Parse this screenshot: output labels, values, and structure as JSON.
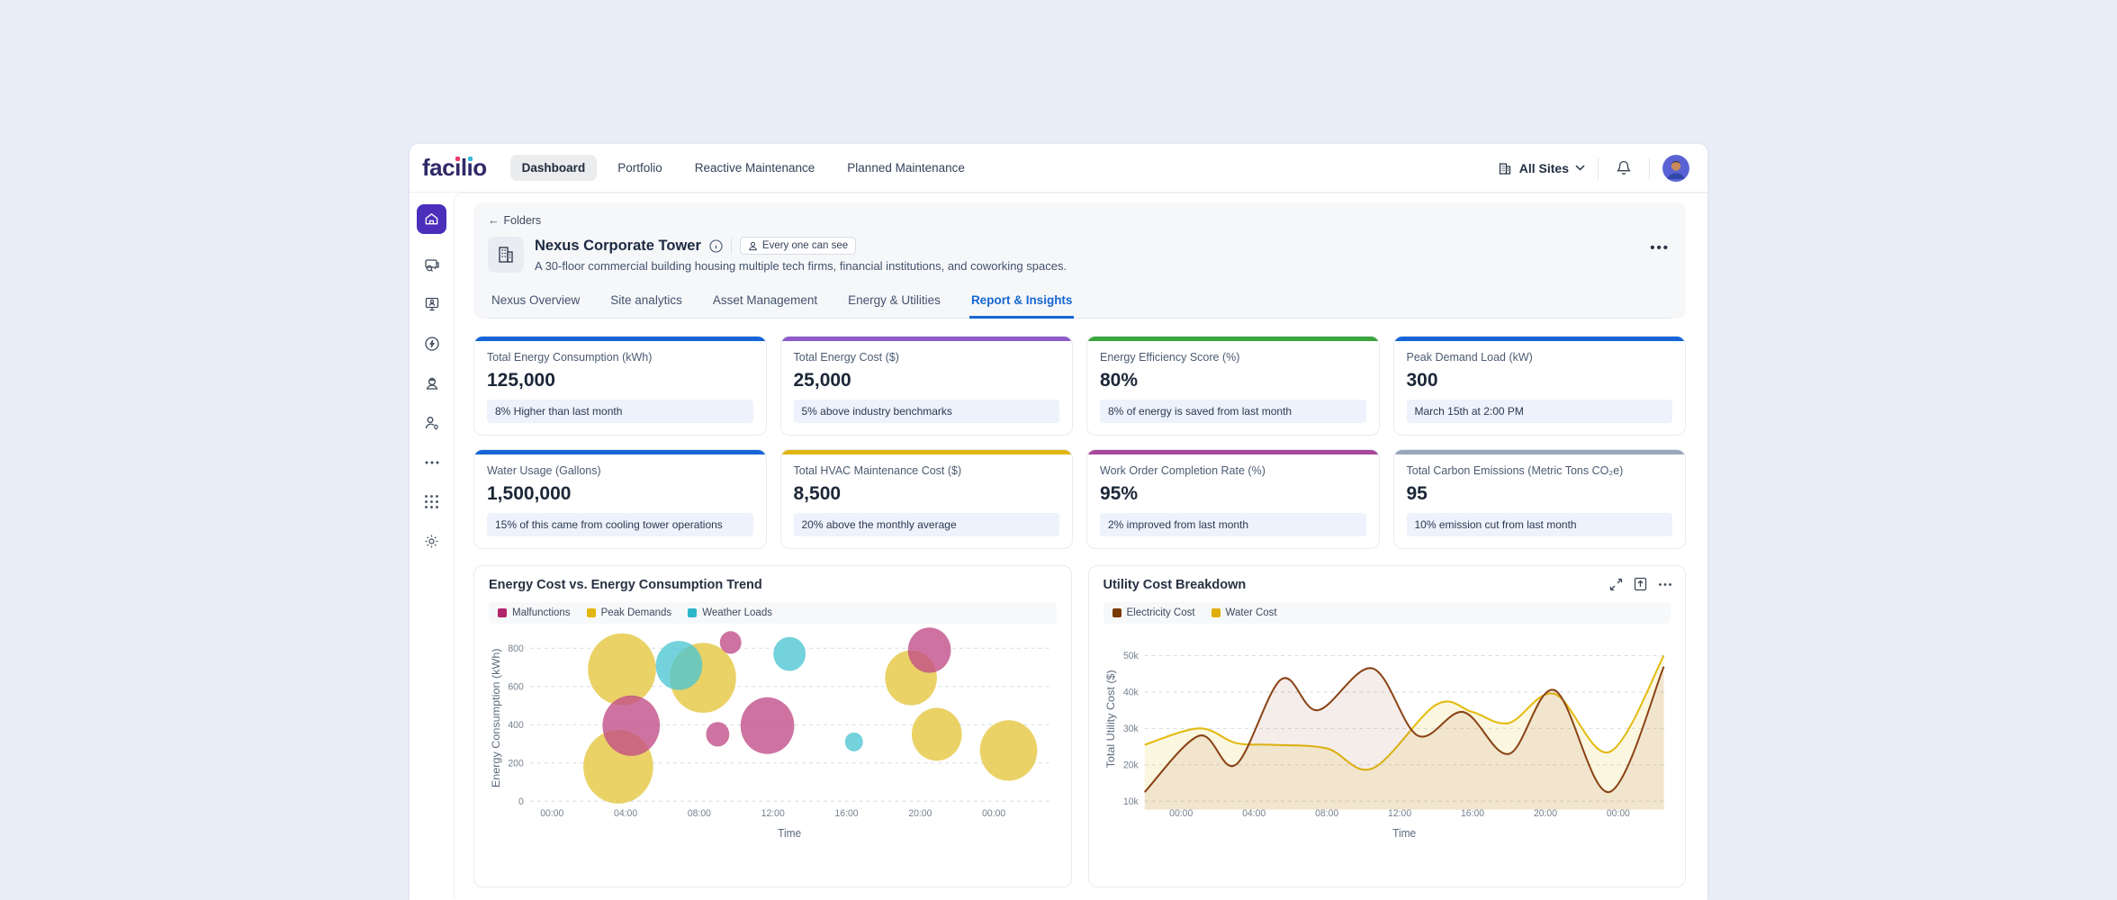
{
  "brand": {
    "seg_pre": "fac",
    "seg_i1": "ı",
    "seg_l": "l",
    "seg_i2": "ı",
    "seg_o": "o",
    "dot_colors": [
      "#ee3a6c",
      "#35b9d9"
    ]
  },
  "top_nav": {
    "items": [
      {
        "label": "Dashboard",
        "active": true
      },
      {
        "label": "Portfolio",
        "active": false
      },
      {
        "label": "Reactive Maintenance",
        "active": false
      },
      {
        "label": "Planned Maintenance",
        "active": false
      }
    ],
    "site_selector_label": "All Sites"
  },
  "sidebar_items": [
    "home",
    "assets",
    "visitor-kiosk",
    "energy",
    "vendor",
    "technician",
    "more",
    "apps",
    "settings"
  ],
  "page_header": {
    "back_label": "Folders",
    "back_arrow": "←",
    "title": "Nexus Corporate Tower",
    "visibility_badge": "Every one can see",
    "description": "A 30-floor commercial building housing multiple tech firms, financial institutions, and coworking spaces.",
    "more_label": "•••"
  },
  "tabs": [
    {
      "label": "Nexus Overview",
      "active": false
    },
    {
      "label": "Site analytics",
      "active": false
    },
    {
      "label": "Asset Management",
      "active": false
    },
    {
      "label": "Energy & Utilities",
      "active": false
    },
    {
      "label": "Report & Insights",
      "active": true
    }
  ],
  "kpi_cards": [
    {
      "title": "Total Energy Consumption (kWh)",
      "value": "125,000",
      "note": "8% Higher than last month",
      "accent": "#1565d8"
    },
    {
      "title": "Total Energy Cost ($)",
      "value": "25,000",
      "note": "5% above industry benchmarks",
      "accent": "#8e5bc8"
    },
    {
      "title": "Energy Efficiency Score (%)",
      "value": "80%",
      "note": "8% of energy is saved from last month",
      "accent": "#3ba53f"
    },
    {
      "title": "Peak Demand Load (kW)",
      "value": "300",
      "note": "March 15th at 2:00 PM",
      "accent": "#1565d8"
    },
    {
      "title": "Water Usage (Gallons)",
      "value": "1,500,000",
      "note": "15% of this came from cooling tower operations",
      "accent": "#1565d8"
    },
    {
      "title": "Total HVAC Maintenance Cost ($)",
      "value": "8,500",
      "note": "20% above the monthly average",
      "accent": "#e0b50f"
    },
    {
      "title": "Work Order Completion Rate (%)",
      "value": "95%",
      "note": "2% improved from last month",
      "accent": "#a8489c"
    },
    {
      "title": "Total Carbon Emissions (Metric Tons CO₂e)",
      "value": "95",
      "note": "10% emission cut from last month",
      "accent": "#9aa7bb"
    }
  ],
  "chart_data": [
    {
      "type": "scatter",
      "title": "Energy Cost vs. Energy Consumption Trend",
      "xlabel": "Time",
      "ylabel": "Energy Consumption (kWh)",
      "x_ticks": {
        "hours": [
          0,
          4,
          8,
          12,
          16,
          20,
          24
        ],
        "labels": [
          "00:00",
          "04:00",
          "08:00",
          "12:00",
          "16:00",
          "20:00",
          "00:00"
        ]
      },
      "y_ticks": [
        0,
        200,
        400,
        600,
        800
      ],
      "ylim": [
        0,
        870
      ],
      "grid": "dashed-horizontal",
      "legend_position": "top",
      "series": [
        {
          "name": "Peak Demands",
          "color": "#e4c53c",
          "legend_color": "#e3b711",
          "points": [
            {
              "h": 3.8,
              "kwh": 690,
              "r": 38
            },
            {
              "h": 8.2,
              "kwh": 645,
              "r": 37
            },
            {
              "h": 3.6,
              "kwh": 180,
              "r": 39
            },
            {
              "h": 19.5,
              "kwh": 645,
              "r": 29
            },
            {
              "h": 20.9,
              "kwh": 350,
              "r": 28
            },
            {
              "h": 24.8,
              "kwh": 265,
              "r": 32
            }
          ]
        },
        {
          "name": "Weather Loads",
          "color": "#4cc5d2",
          "legend_color": "#2cb7c8",
          "points": [
            {
              "h": 6.9,
              "kwh": 710,
              "r": 26
            },
            {
              "h": 12.9,
              "kwh": 770,
              "r": 18
            },
            {
              "h": 16.4,
              "kwh": 310,
              "r": 10
            }
          ]
        },
        {
          "name": "Malfunctions",
          "color": "#c04c86",
          "legend_color": "#b3256b",
          "points": [
            {
              "h": 4.3,
              "kwh": 395,
              "r": 32
            },
            {
              "h": 9.0,
              "kwh": 350,
              "r": 13
            },
            {
              "h": 9.7,
              "kwh": 830,
              "r": 12
            },
            {
              "h": 11.7,
              "kwh": 395,
              "r": 30
            },
            {
              "h": 20.5,
              "kwh": 790,
              "r": 24
            }
          ]
        }
      ],
      "legend_order": [
        "Malfunctions",
        "Peak Demands",
        "Weather Loads"
      ]
    },
    {
      "type": "line",
      "title": "Utility Cost Breakdown",
      "xlabel": "Time",
      "ylabel": "Total Utility Cost ($)",
      "x_ticks": {
        "hours": [
          0,
          4,
          8,
          12,
          16,
          20,
          24
        ],
        "labels": [
          "00:00",
          "04:00",
          "08:00",
          "12:00",
          "16:00",
          "20:00",
          "00:00"
        ]
      },
      "y_ticks": {
        "values": [
          10,
          20,
          30,
          40,
          50
        ],
        "labels": [
          "10k",
          "20k",
          "30k",
          "40k",
          "50k"
        ]
      },
      "ylim_k": [
        10,
        50
      ],
      "grid": "dashed-horizontal",
      "legend_position": "top",
      "smooth": true,
      "series": [
        {
          "name": "Water Cost",
          "color": "#e3bb10",
          "legend_color": "#e0ae0a",
          "area": "rgba(235,204,77,0.18)",
          "points": [
            [
              -2,
              25.5
            ],
            [
              1,
              30
            ],
            [
              3,
              26
            ],
            [
              5,
              25.5
            ],
            [
              8,
              24.5
            ],
            [
              10.5,
              19
            ],
            [
              14,
              36.5
            ],
            [
              16,
              34.5
            ],
            [
              18,
              31.5
            ],
            [
              20.5,
              39.5
            ],
            [
              23.5,
              23.5
            ],
            [
              26.5,
              50
            ]
          ]
        },
        {
          "name": "Electricity Cost",
          "color": "#8a4315",
          "legend_color": "#7b3b05",
          "area": "rgba(154,82,45,0.10)",
          "points": [
            [
              -2,
              12.5
            ],
            [
              1,
              28
            ],
            [
              3,
              20
            ],
            [
              5.5,
              43.5
            ],
            [
              7.5,
              35
            ],
            [
              10.5,
              46.5
            ],
            [
              13,
              28
            ],
            [
              15.5,
              34.5
            ],
            [
              18,
              23
            ],
            [
              20.5,
              40.5
            ],
            [
              23.5,
              12.5
            ],
            [
              26.5,
              47
            ]
          ]
        }
      ],
      "legend_order": [
        "Electricity Cost",
        "Water Cost"
      ]
    }
  ]
}
